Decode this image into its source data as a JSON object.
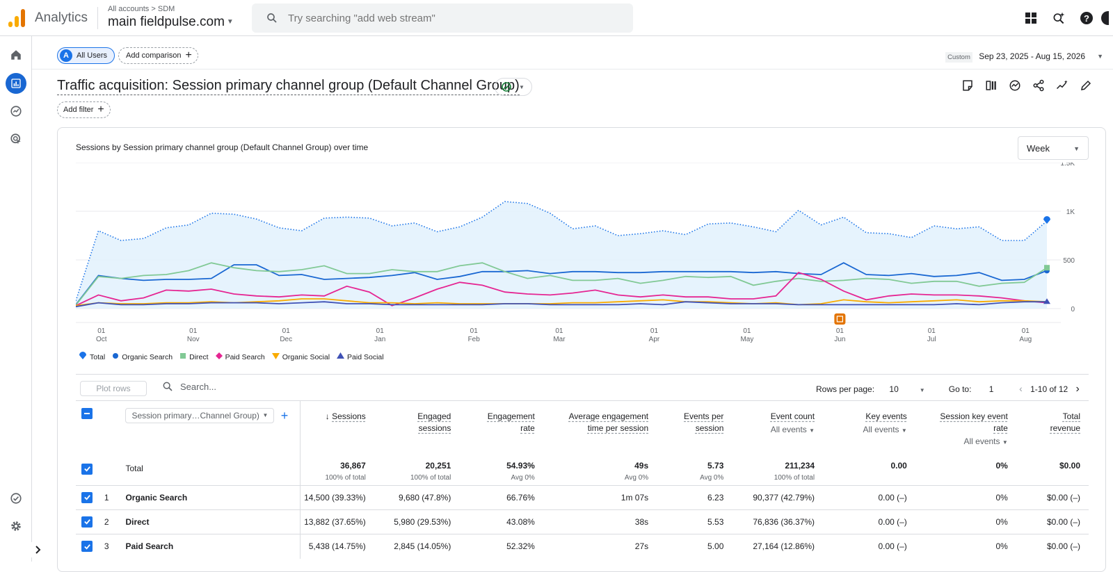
{
  "app": {
    "name": "Analytics",
    "breadcrumb_account": "All accounts",
    "breadcrumb_property": "SDM",
    "property_name": "main fieldpulse.com",
    "search_placeholder": "Try searching \"add web stream\""
  },
  "segment_bar": {
    "segment_avatar": "A",
    "segment_label": "All Users",
    "add_comparison_label": "Add comparison",
    "date_mode": "Custom",
    "date_range": "Sep 23, 2025 - Aug 15, 2026"
  },
  "report": {
    "title": "Traffic acquisition: Session primary channel group (Default Channel Group)",
    "add_filter_label": "Add filter"
  },
  "chart_card": {
    "title": "Sessions by Session primary channel group (Default Channel Group) over time",
    "granularity": "Week"
  },
  "chart_data": {
    "type": "line",
    "y_ticks": [
      "0",
      "500",
      "1K",
      "1.5K"
    ],
    "ylim": [
      0,
      1500
    ],
    "x_ticks": [
      {
        "day": "01",
        "month": "Oct"
      },
      {
        "day": "01",
        "month": "Nov"
      },
      {
        "day": "01",
        "month": "Dec"
      },
      {
        "day": "01",
        "month": "Jan"
      },
      {
        "day": "01",
        "month": "Feb"
      },
      {
        "day": "01",
        "month": "Mar"
      },
      {
        "day": "01",
        "month": "Apr"
      },
      {
        "day": "01",
        "month": "May"
      },
      {
        "day": "01",
        "month": "Jun"
      },
      {
        "day": "01",
        "month": "Jul"
      },
      {
        "day": "01",
        "month": "Aug"
      }
    ],
    "series": [
      {
        "name": "Total",
        "color": "#1a73e8",
        "marker": "pin",
        "area": true,
        "dotted": true,
        "values": [
          80,
          800,
          700,
          720,
          830,
          860,
          980,
          970,
          920,
          830,
          800,
          930,
          940,
          930,
          850,
          880,
          790,
          840,
          940,
          1100,
          1080,
          980,
          820,
          850,
          750,
          770,
          800,
          760,
          870,
          880,
          840,
          790,
          1010,
          860,
          940,
          780,
          770,
          730,
          850,
          820,
          840,
          700,
          700,
          900
        ]
      },
      {
        "name": "Organic Search",
        "color": "#1967d2",
        "marker": "circle",
        "values": [
          40,
          340,
          310,
          290,
          300,
          300,
          310,
          450,
          450,
          340,
          350,
          300,
          310,
          320,
          340,
          370,
          300,
          330,
          380,
          380,
          390,
          360,
          380,
          380,
          370,
          370,
          380,
          380,
          380,
          380,
          370,
          380,
          360,
          350,
          470,
          350,
          340,
          360,
          330,
          340,
          370,
          290,
          300,
          390
        ]
      },
      {
        "name": "Direct",
        "color": "#81c995",
        "marker": "square",
        "values": [
          35,
          330,
          310,
          340,
          350,
          390,
          470,
          420,
          390,
          380,
          400,
          440,
          360,
          360,
          400,
          380,
          380,
          440,
          470,
          380,
          310,
          340,
          290,
          290,
          310,
          260,
          290,
          330,
          320,
          330,
          240,
          280,
          310,
          280,
          290,
          310,
          300,
          260,
          280,
          280,
          230,
          260,
          270,
          420
        ]
      },
      {
        "name": "Paid Search",
        "color": "#e52592",
        "marker": "diamond",
        "values": [
          30,
          140,
          80,
          110,
          190,
          180,
          200,
          150,
          130,
          120,
          140,
          130,
          230,
          170,
          30,
          110,
          200,
          270,
          240,
          170,
          150,
          140,
          160,
          190,
          140,
          120,
          140,
          120,
          120,
          100,
          100,
          130,
          370,
          300,
          180,
          90,
          130,
          150,
          140,
          140,
          130,
          110,
          80,
          60
        ]
      },
      {
        "name": "Organic Social",
        "color": "#f9ab00",
        "marker": "triangle-down",
        "values": [
          30,
          60,
          50,
          50,
          60,
          60,
          70,
          60,
          70,
          80,
          100,
          100,
          80,
          60,
          60,
          50,
          60,
          50,
          50,
          50,
          50,
          50,
          60,
          60,
          70,
          80,
          90,
          70,
          70,
          60,
          50,
          60,
          40,
          50,
          90,
          70,
          60,
          70,
          80,
          90,
          70,
          80,
          80,
          70
        ]
      },
      {
        "name": "Paid Social",
        "color": "#3f51b5",
        "marker": "triangle-up",
        "values": [
          20,
          60,
          40,
          40,
          50,
          50,
          60,
          60,
          60,
          50,
          60,
          70,
          50,
          50,
          40,
          40,
          40,
          40,
          40,
          50,
          50,
          40,
          40,
          40,
          40,
          50,
          40,
          70,
          60,
          50,
          50,
          50,
          40,
          40,
          40,
          40,
          40,
          40,
          40,
          50,
          40,
          60,
          70,
          70
        ]
      }
    ],
    "annotation_icon": "annotation-marker-icon"
  },
  "table_toolbar": {
    "plot_rows_label": "Plot rows",
    "search_placeholder": "Search...",
    "rows_per_page_label": "Rows per page:",
    "rows_per_page_value": "10",
    "goto_label": "Go to:",
    "goto_value": "1",
    "page_range": "1-10 of 12"
  },
  "table": {
    "dimension_select": "Session primary…Channel Group)",
    "headers": [
      {
        "line1": "Sessions",
        "line2": "",
        "sub": "",
        "sorted": true
      },
      {
        "line1": "Engaged",
        "line2": "sessions",
        "sub": ""
      },
      {
        "line1": "Engagement",
        "line2": "rate",
        "sub": ""
      },
      {
        "line1": "Average engagement",
        "line2": "time per session",
        "sub": ""
      },
      {
        "line1": "Events per",
        "line2": "session",
        "sub": ""
      },
      {
        "line1": "Event count",
        "line2": "",
        "sub": "All events"
      },
      {
        "line1": "Key events",
        "line2": "",
        "sub": "All events"
      },
      {
        "line1": "Session key event",
        "line2": "rate",
        "sub": "All events"
      },
      {
        "line1": "Total",
        "line2": "revenue",
        "sub": ""
      }
    ],
    "totals": {
      "label": "Total",
      "values": [
        "36,867",
        "20,251",
        "54.93%",
        "49s",
        "5.73",
        "211,234",
        "0.00",
        "0%",
        "$0.00"
      ],
      "subs": [
        "100% of total",
        "100% of total",
        "Avg 0%",
        "Avg 0%",
        "Avg 0%",
        "100% of total",
        "",
        "",
        ""
      ]
    },
    "rows": [
      {
        "rank": "1",
        "name": "Organic Search",
        "values": [
          "14,500 (39.33%)",
          "9,680 (47.8%)",
          "66.76%",
          "1m 07s",
          "6.23",
          "90,377 (42.79%)",
          "0.00 (–)",
          "0%",
          "$0.00 (–)"
        ]
      },
      {
        "rank": "2",
        "name": "Direct",
        "values": [
          "13,882 (37.65%)",
          "5,980 (29.53%)",
          "43.08%",
          "38s",
          "5.53",
          "76,836 (36.37%)",
          "0.00 (–)",
          "0%",
          "$0.00 (–)"
        ]
      },
      {
        "rank": "3",
        "name": "Paid Search",
        "values": [
          "5,438 (14.75%)",
          "2,845 (14.05%)",
          "52.32%",
          "27s",
          "5.00",
          "27,164 (12.86%)",
          "0.00 (–)",
          "0%",
          "$0.00 (–)"
        ]
      }
    ]
  }
}
